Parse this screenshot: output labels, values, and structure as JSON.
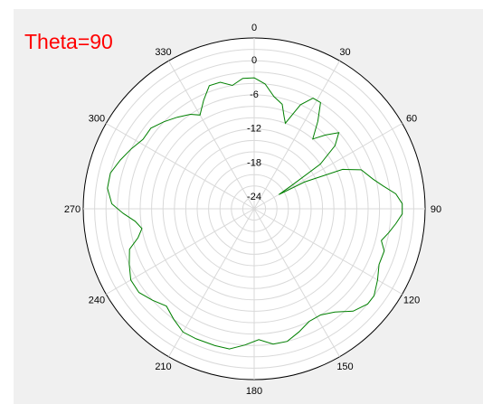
{
  "chart_data": {
    "type": "polar-line",
    "title": "Theta=90",
    "angle_ticks": [
      "0",
      "30",
      "60",
      "90",
      "120",
      "150",
      "180",
      "210",
      "240",
      "270",
      "300",
      "330"
    ],
    "radial_ticks": [
      "0",
      "-6",
      "-12",
      "-18",
      "-24"
    ],
    "rlim": [
      -30,
      0
    ],
    "grid": true,
    "series": [
      {
        "color": "#008000",
        "points": [
          [
            0,
            -7
          ],
          [
            5,
            -8
          ],
          [
            10,
            -10
          ],
          [
            15,
            -11
          ],
          [
            18,
            -13
          ],
          [
            20,
            -14
          ],
          [
            24,
            -10
          ],
          [
            28,
            -8
          ],
          [
            32,
            -8
          ],
          [
            36,
            -11
          ],
          [
            40,
            -14
          ],
          [
            44,
            -12
          ],
          [
            48,
            -10
          ],
          [
            52,
            -12
          ],
          [
            56,
            -16
          ],
          [
            58,
            -22
          ],
          [
            60,
            -25
          ],
          [
            62,
            -20
          ],
          [
            66,
            -13
          ],
          [
            70,
            -10
          ],
          [
            76,
            -8.5
          ],
          [
            80,
            -7
          ],
          [
            84,
            -5
          ],
          [
            88,
            -4
          ],
          [
            92,
            -4
          ],
          [
            96,
            -5
          ],
          [
            100,
            -6
          ],
          [
            104,
            -7
          ],
          [
            108,
            -6
          ],
          [
            114,
            -6
          ],
          [
            120,
            -5
          ],
          [
            126,
            -4
          ],
          [
            130,
            -4
          ],
          [
            136,
            -5
          ],
          [
            142,
            -7
          ],
          [
            148,
            -8
          ],
          [
            154,
            -8
          ],
          [
            160,
            -7
          ],
          [
            166,
            -6
          ],
          [
            172,
            -6
          ],
          [
            178,
            -7
          ],
          [
            184,
            -6
          ],
          [
            190,
            -5
          ],
          [
            196,
            -5
          ],
          [
            204,
            -5
          ],
          [
            210,
            -5
          ],
          [
            216,
            -6
          ],
          [
            222,
            -7
          ],
          [
            228,
            -6
          ],
          [
            234,
            -5
          ],
          [
            240,
            -5
          ],
          [
            246,
            -6
          ],
          [
            252,
            -7
          ],
          [
            256,
            -9
          ],
          [
            260,
            -10
          ],
          [
            264,
            -9
          ],
          [
            268,
            -7
          ],
          [
            272,
            -5
          ],
          [
            278,
            -4
          ],
          [
            284,
            -4
          ],
          [
            290,
            -5
          ],
          [
            296,
            -6
          ],
          [
            302,
            -7
          ],
          [
            308,
            -7
          ],
          [
            314,
            -8
          ],
          [
            320,
            -9
          ],
          [
            326,
            -10
          ],
          [
            330,
            -11
          ],
          [
            335,
            -9
          ],
          [
            340,
            -7
          ],
          [
            345,
            -7
          ],
          [
            350,
            -8
          ],
          [
            355,
            -7
          ],
          [
            360,
            -7
          ]
        ]
      }
    ]
  }
}
